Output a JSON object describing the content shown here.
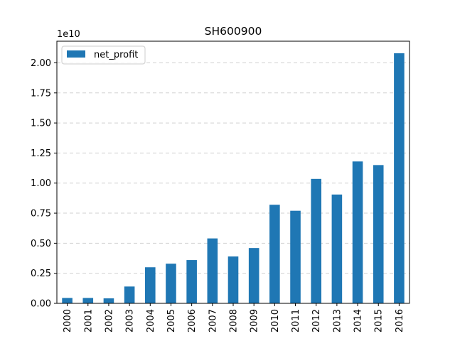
{
  "chart_data": {
    "type": "bar",
    "title": "SH600900",
    "xlabel": "",
    "ylabel": "",
    "y_offset_label": "1e10",
    "categories": [
      "2000",
      "2001",
      "2002",
      "2003",
      "2004",
      "2005",
      "2006",
      "2007",
      "2008",
      "2009",
      "2010",
      "2011",
      "2012",
      "2013",
      "2014",
      "2015",
      "2016"
    ],
    "series": [
      {
        "name": "net_profit",
        "color": "#1f77b4",
        "values": [
          0.045,
          0.045,
          0.042,
          0.14,
          0.3,
          0.33,
          0.36,
          0.54,
          0.39,
          0.46,
          0.82,
          0.77,
          1.035,
          0.905,
          1.18,
          1.15,
          2.08
        ]
      }
    ],
    "y_ticks": [
      "0.00",
      "0.25",
      "0.50",
      "0.75",
      "1.00",
      "1.25",
      "1.50",
      "1.75",
      "2.00"
    ],
    "ylim": [
      0,
      2.18
    ],
    "grid": "horizontal-dashed",
    "legend_position": "upper-left"
  }
}
